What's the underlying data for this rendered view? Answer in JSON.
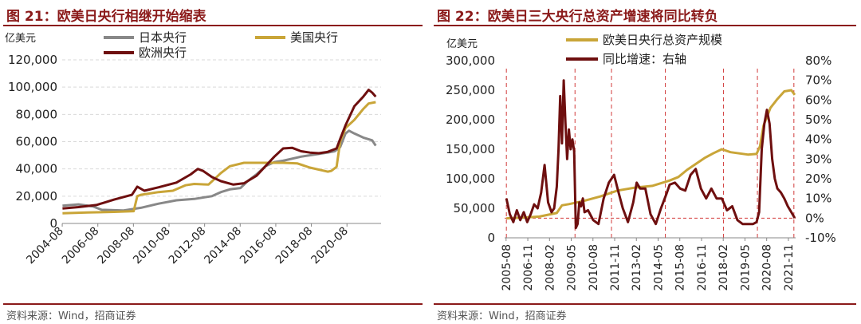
{
  "left": {
    "figure_title": "图 21：欧美日央行相继开始缩表",
    "source": "资料来源：Wind，招商证券"
  },
  "right": {
    "figure_title": "图 22：欧美日三大央行总资产增速将同比转负",
    "source": "资料来源：Wind，招商证券"
  },
  "colors": {
    "japan": "#888888",
    "us": "#C9A538",
    "euro": "#6E0F0F",
    "title": "#8B1A1A",
    "grid": "#d9d9d9",
    "marker": "#d23b3b"
  },
  "chart_data": [
    {
      "type": "line",
      "title": "欧美日央行相继开始缩表",
      "ylabel": "亿美元",
      "ylim": [
        0,
        120000
      ],
      "yticks": [
        "0",
        "20,000",
        "40,000",
        "60,000",
        "80,000",
        "100,000",
        "120,000"
      ],
      "xlim": [
        2004.58,
        2022.5
      ],
      "xticks": [
        "2004-08",
        "2006-08",
        "2008-08",
        "2010-08",
        "2012-08",
        "2014-08",
        "2016-08",
        "2018-08",
        "2020-08"
      ],
      "legend": [
        "日本央行",
        "美国央行",
        "欧洲央行"
      ],
      "series": [
        {
          "name": "日本央行",
          "x": [
            2004.6,
            2005.5,
            2006.3,
            2006.8,
            2008,
            2009,
            2010,
            2011,
            2012,
            2013,
            2013.5,
            2014,
            2014.6,
            2015,
            2015.5,
            2016,
            2016.5,
            2017,
            2018,
            2019,
            2019.5,
            2019.9,
            2020.2,
            2020.5,
            2020.7,
            2021,
            2021.5,
            2022,
            2022.2
          ],
          "y": [
            13000,
            14000,
            12500,
            10000,
            9500,
            11500,
            14500,
            17000,
            18000,
            20000,
            23000,
            25000,
            26000,
            31000,
            36000,
            42000,
            45000,
            46000,
            49000,
            51000,
            52000,
            53000,
            56000,
            66000,
            68000,
            66000,
            63000,
            61000,
            57000
          ]
        },
        {
          "name": "美国央行",
          "x": [
            2004.6,
            2006,
            2007.5,
            2008.6,
            2008.8,
            2009,
            2010,
            2010.8,
            2011.5,
            2012,
            2012.8,
            2013.5,
            2014,
            2014.8,
            2015,
            2017,
            2017.8,
            2018.5,
            2019.5,
            2019.7,
            2020,
            2020.2,
            2020.5,
            2021,
            2021.5,
            2021.8,
            2022.2
          ],
          "y": [
            7500,
            8000,
            8500,
            9000,
            20000,
            21000,
            23000,
            24000,
            28000,
            29000,
            28500,
            37000,
            42000,
            44500,
            44500,
            44500,
            44000,
            41000,
            38000,
            38500,
            41500,
            60000,
            70000,
            76000,
            84000,
            88000,
            89000
          ]
        },
        {
          "name": "欧洲央行",
          "x": [
            2004.6,
            2005.5,
            2006.5,
            2007.5,
            2008.5,
            2008.8,
            2009.2,
            2010,
            2011,
            2011.8,
            2012.2,
            2012.5,
            2013,
            2013.5,
            2014.2,
            2014.8,
            2015.5,
            2016,
            2016.5,
            2017,
            2017.5,
            2018,
            2018.5,
            2019,
            2019.5,
            2020,
            2020.2,
            2020.5,
            2021,
            2021.5,
            2021.8,
            2022,
            2022.2
          ],
          "y": [
            11000,
            12000,
            13500,
            17500,
            21000,
            27000,
            24000,
            26500,
            30000,
            36000,
            40000,
            38500,
            34000,
            31000,
            28500,
            29500,
            35000,
            42000,
            49000,
            55000,
            55500,
            53000,
            52000,
            51500,
            52500,
            55000,
            62000,
            72000,
            86000,
            93000,
            98000,
            96000,
            93000
          ]
        }
      ]
    },
    {
      "type": "line",
      "title": "欧美日三大央行总资产增速将同比转负",
      "ylabel": "亿美元",
      "ylim": [
        0,
        300000
      ],
      "yticks": [
        "0",
        "50,000",
        "100,000",
        "150,000",
        "200,000",
        "250,000",
        "300,000"
      ],
      "y2lim": [
        -10,
        80
      ],
      "y2ticks": [
        "-10%",
        "0%",
        "10%",
        "20%",
        "30%",
        "40%",
        "50%",
        "60%",
        "70%",
        "80%"
      ],
      "xlim": [
        2005.5,
        2022.25
      ],
      "xticks": [
        "2005-08",
        "2006-11",
        "2008-02",
        "2009-05",
        "2010-08",
        "2011-11",
        "2013-02",
        "2014-05",
        "2015-08",
        "2016-11",
        "2018-02",
        "2019-05",
        "2020-08",
        "2021-11"
      ],
      "legend": [
        "欧美日央行总资产规模",
        "同比增速：右轴"
      ],
      "series": [
        {
          "name": "欧美日央行总资产规模",
          "axis": "left",
          "x": [
            2005.6,
            2006.5,
            2007.5,
            2008.5,
            2008.8,
            2009.2,
            2010,
            2011,
            2012,
            2013,
            2014,
            2015,
            2015.5,
            2016,
            2016.5,
            2017,
            2017.5,
            2018,
            2018.5,
            2019,
            2019.5,
            2020,
            2020.2,
            2020.4,
            2020.8,
            2021.2,
            2021.6,
            2022,
            2022.2
          ],
          "y": [
            33000,
            34000,
            36000,
            42000,
            55000,
            57000,
            62000,
            70000,
            80000,
            85000,
            88000,
            97000,
            103000,
            115000,
            125000,
            135000,
            143000,
            150000,
            145000,
            143000,
            141000,
            142000,
            155000,
            190000,
            220000,
            235000,
            248000,
            250000,
            242000
          ]
        },
        {
          "name": "同比增速：右轴",
          "axis": "right",
          "x": [
            2005.6,
            2005.8,
            2006,
            2006.2,
            2006.4,
            2006.6,
            2006.8,
            2007,
            2007.2,
            2007.4,
            2007.6,
            2007.8,
            2008,
            2008.2,
            2008.35,
            2008.5,
            2008.6,
            2008.7,
            2008.8,
            2008.9,
            2009,
            2009.1,
            2009.2,
            2009.3,
            2009.4,
            2009.5,
            2009.6,
            2009.7,
            2009.8,
            2009.9,
            2010,
            2010.1,
            2010.3,
            2010.6,
            2010.9,
            2011.2,
            2011.5,
            2011.8,
            2012,
            2012.3,
            2012.6,
            2012.9,
            2013.1,
            2013.3,
            2013.6,
            2013.9,
            2014.2,
            2014.5,
            2014.8,
            2015,
            2015.3,
            2015.6,
            2015.9,
            2016.2,
            2016.5,
            2016.8,
            2017.1,
            2017.4,
            2017.7,
            2018,
            2018.3,
            2018.6,
            2018.9,
            2019.2,
            2019.5,
            2019.8,
            2020,
            2020.15,
            2020.3,
            2020.45,
            2020.6,
            2020.75,
            2020.9,
            2021.05,
            2021.2,
            2021.4,
            2021.6,
            2021.8,
            2022,
            2022.2
          ],
          "y": [
            10,
            2,
            -2,
            4,
            -1,
            3,
            -2,
            2,
            7,
            5,
            13,
            27,
            8,
            3,
            5,
            16,
            35,
            62,
            38,
            70,
            48,
            30,
            45,
            35,
            40,
            34,
            -5,
            -3,
            8,
            6,
            10,
            3,
            4,
            -1,
            -3,
            10,
            18,
            22,
            15,
            5,
            -2,
            8,
            18,
            15,
            15,
            2,
            -3,
            5,
            12,
            17,
            18,
            15,
            14,
            22,
            25,
            15,
            10,
            15,
            10,
            10,
            4,
            6,
            -1,
            -3,
            -3,
            -3,
            -2,
            3,
            35,
            48,
            55,
            48,
            30,
            20,
            15,
            13,
            10,
            6,
            3,
            0
          ]
        }
      ]
    }
  ]
}
